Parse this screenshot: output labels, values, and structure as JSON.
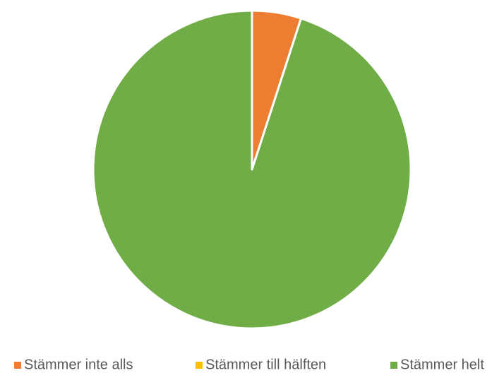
{
  "chart_data": {
    "type": "pie",
    "categories": [
      "Stämmer inte alls",
      "Stämmer till hälften",
      "Stämmer helt"
    ],
    "values": [
      5,
      0,
      95
    ],
    "colors": [
      "#ed7d31",
      "#ffc000",
      "#70ad47"
    ],
    "legend": "bottom"
  }
}
